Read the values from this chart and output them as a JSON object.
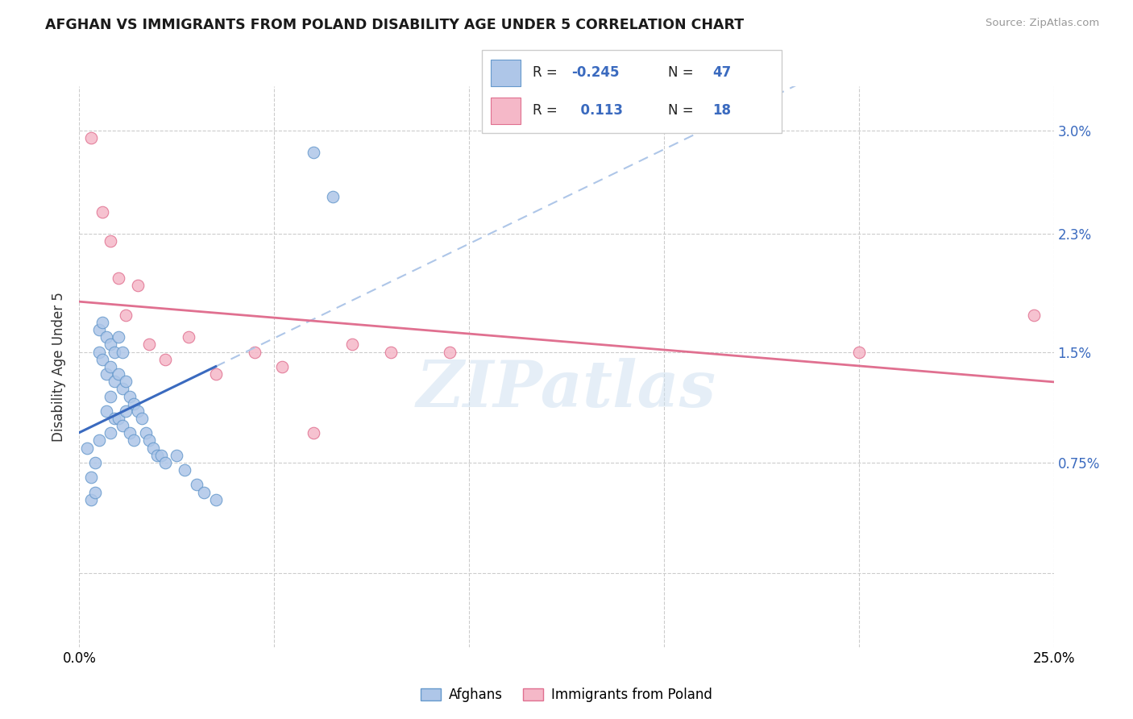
{
  "title": "AFGHAN VS IMMIGRANTS FROM POLAND DISABILITY AGE UNDER 5 CORRELATION CHART",
  "source": "Source: ZipAtlas.com",
  "ylabel": "Disability Age Under 5",
  "xlim": [
    0.0,
    0.25
  ],
  "ylim": [
    -0.005,
    0.033
  ],
  "ytick_vals": [
    0.0,
    0.0075,
    0.015,
    0.023,
    0.03
  ],
  "ytick_labels_right": [
    "",
    "0.75%",
    "1.5%",
    "2.3%",
    "3.0%"
  ],
  "xtick_vals": [
    0.0,
    0.05,
    0.1,
    0.15,
    0.2,
    0.25
  ],
  "xtick_labels": [
    "0.0%",
    "",
    "",
    "",
    "",
    "25.0%"
  ],
  "afghan_R": -0.245,
  "afghan_N": 47,
  "poland_R": 0.113,
  "poland_N": 18,
  "afghan_color": "#aec6e8",
  "afghan_edge": "#6699cc",
  "poland_color": "#f5b8c8",
  "poland_edge": "#e07090",
  "trend_afghan_solid_color": "#3a6abf",
  "trend_afghan_dash_color": "#aec6e8",
  "trend_poland_color": "#e07090",
  "watermark": "ZIPatlas",
  "legend_R_color": "#3a6abf",
  "legend_label_color": "#222222",
  "afghan_x": [
    0.002,
    0.003,
    0.003,
    0.004,
    0.004,
    0.005,
    0.005,
    0.005,
    0.006,
    0.006,
    0.007,
    0.007,
    0.007,
    0.008,
    0.008,
    0.008,
    0.008,
    0.009,
    0.009,
    0.009,
    0.01,
    0.01,
    0.01,
    0.011,
    0.011,
    0.011,
    0.012,
    0.012,
    0.013,
    0.013,
    0.014,
    0.014,
    0.015,
    0.016,
    0.017,
    0.018,
    0.019,
    0.02,
    0.021,
    0.022,
    0.025,
    0.027,
    0.03,
    0.032,
    0.035,
    0.06,
    0.065
  ],
  "afghan_y": [
    0.0085,
    0.0065,
    0.005,
    0.0075,
    0.0055,
    0.0165,
    0.015,
    0.009,
    0.017,
    0.0145,
    0.016,
    0.0135,
    0.011,
    0.0155,
    0.014,
    0.012,
    0.0095,
    0.015,
    0.013,
    0.0105,
    0.016,
    0.0135,
    0.0105,
    0.015,
    0.0125,
    0.01,
    0.013,
    0.011,
    0.012,
    0.0095,
    0.0115,
    0.009,
    0.011,
    0.0105,
    0.0095,
    0.009,
    0.0085,
    0.008,
    0.008,
    0.0075,
    0.008,
    0.007,
    0.006,
    0.0055,
    0.005,
    0.0285,
    0.0255
  ],
  "poland_x": [
    0.003,
    0.006,
    0.008,
    0.01,
    0.012,
    0.015,
    0.018,
    0.022,
    0.028,
    0.035,
    0.045,
    0.052,
    0.06,
    0.07,
    0.08,
    0.095,
    0.2,
    0.245
  ],
  "poland_y": [
    0.0295,
    0.0245,
    0.0225,
    0.02,
    0.0175,
    0.0195,
    0.0155,
    0.0145,
    0.016,
    0.0135,
    0.015,
    0.014,
    0.0095,
    0.0155,
    0.015,
    0.015,
    0.015,
    0.0175
  ]
}
